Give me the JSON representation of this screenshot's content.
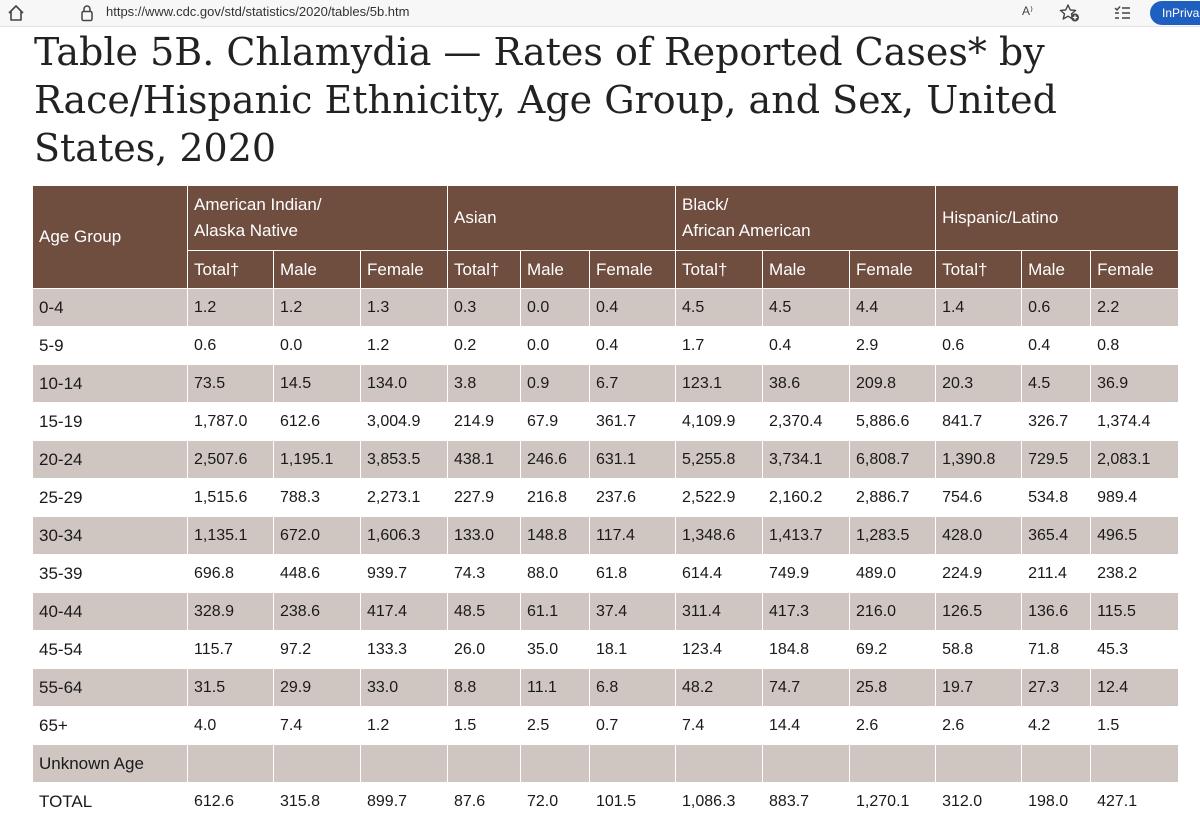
{
  "browser": {
    "url": "https://www.cdc.gov/std/statistics/2020/tables/5b.htm",
    "read_aloud_label": "A⁾",
    "inprivate_label": "InPriva"
  },
  "page": {
    "title": "Table 5B. Chlamydia — Rates of Reported Cases* by Race/Hispanic Ethnicity, Age Group, and Sex, United States, 2020"
  },
  "table": {
    "age_group_header": "Age Group",
    "groups": [
      {
        "line1": "American Indian/",
        "line2": "Alaska Native"
      },
      {
        "line1": "Asian",
        "line2": ""
      },
      {
        "line1": "Black/",
        "line2": "African American"
      },
      {
        "line1": "Hispanic/Latino",
        "line2": ""
      }
    ],
    "subheaders": [
      "Total†",
      "Male",
      "Female"
    ],
    "rows": [
      {
        "age": "0-4",
        "values": [
          "1.2",
          "1.2",
          "1.3",
          "0.3",
          "0.0",
          "0.4",
          "4.5",
          "4.5",
          "4.4",
          "1.4",
          "0.6",
          "2.2"
        ]
      },
      {
        "age": "5-9",
        "values": [
          "0.6",
          "0.0",
          "1.2",
          "0.2",
          "0.0",
          "0.4",
          "1.7",
          "0.4",
          "2.9",
          "0.6",
          "0.4",
          "0.8"
        ]
      },
      {
        "age": "10-14",
        "values": [
          "73.5",
          "14.5",
          "134.0",
          "3.8",
          "0.9",
          "6.7",
          "123.1",
          "38.6",
          "209.8",
          "20.3",
          "4.5",
          "36.9"
        ]
      },
      {
        "age": "15-19",
        "values": [
          "1,787.0",
          "612.6",
          "3,004.9",
          "214.9",
          "67.9",
          "361.7",
          "4,109.9",
          "2,370.4",
          "5,886.6",
          "841.7",
          "326.7",
          "1,374.4"
        ]
      },
      {
        "age": "20-24",
        "values": [
          "2,507.6",
          "1,195.1",
          "3,853.5",
          "438.1",
          "246.6",
          "631.1",
          "5,255.8",
          "3,734.1",
          "6,808.7",
          "1,390.8",
          "729.5",
          "2,083.1"
        ]
      },
      {
        "age": "25-29",
        "values": [
          "1,515.6",
          "788.3",
          "2,273.1",
          "227.9",
          "216.8",
          "237.6",
          "2,522.9",
          "2,160.2",
          "2,886.7",
          "754.6",
          "534.8",
          "989.4"
        ]
      },
      {
        "age": "30-34",
        "values": [
          "1,135.1",
          "672.0",
          "1,606.3",
          "133.0",
          "148.8",
          "117.4",
          "1,348.6",
          "1,413.7",
          "1,283.5",
          "428.0",
          "365.4",
          "496.5"
        ]
      },
      {
        "age": "35-39",
        "values": [
          "696.8",
          "448.6",
          "939.7",
          "74.3",
          "88.0",
          "61.8",
          "614.4",
          "749.9",
          "489.0",
          "224.9",
          "211.4",
          "238.2"
        ]
      },
      {
        "age": "40-44",
        "values": [
          "328.9",
          "238.6",
          "417.4",
          "48.5",
          "61.1",
          "37.4",
          "311.4",
          "417.3",
          "216.0",
          "126.5",
          "136.6",
          "115.5"
        ]
      },
      {
        "age": "45-54",
        "values": [
          "115.7",
          "97.2",
          "133.3",
          "26.0",
          "35.0",
          "18.1",
          "123.4",
          "184.8",
          "69.2",
          "58.8",
          "71.8",
          "45.3"
        ]
      },
      {
        "age": "55-64",
        "values": [
          "31.5",
          "29.9",
          "33.0",
          "8.8",
          "11.1",
          "6.8",
          "48.2",
          "74.7",
          "25.8",
          "19.7",
          "27.3",
          "12.4"
        ]
      },
      {
        "age": "65+",
        "values": [
          "4.0",
          "7.4",
          "1.2",
          "1.5",
          "2.5",
          "0.7",
          "7.4",
          "14.4",
          "2.6",
          "2.6",
          "4.2",
          "1.5"
        ]
      },
      {
        "age": "Unknown Age",
        "values": [
          "",
          "",
          "",
          "",
          "",
          "",
          "",
          "",
          "",
          "",
          "",
          ""
        ]
      },
      {
        "age": "TOTAL",
        "values": [
          "612.6",
          "315.8",
          "899.7",
          "87.6",
          "72.0",
          "101.5",
          "1,086.3",
          "883.7",
          "1,270.1",
          "312.0",
          "198.0",
          "427.1"
        ]
      }
    ]
  }
}
